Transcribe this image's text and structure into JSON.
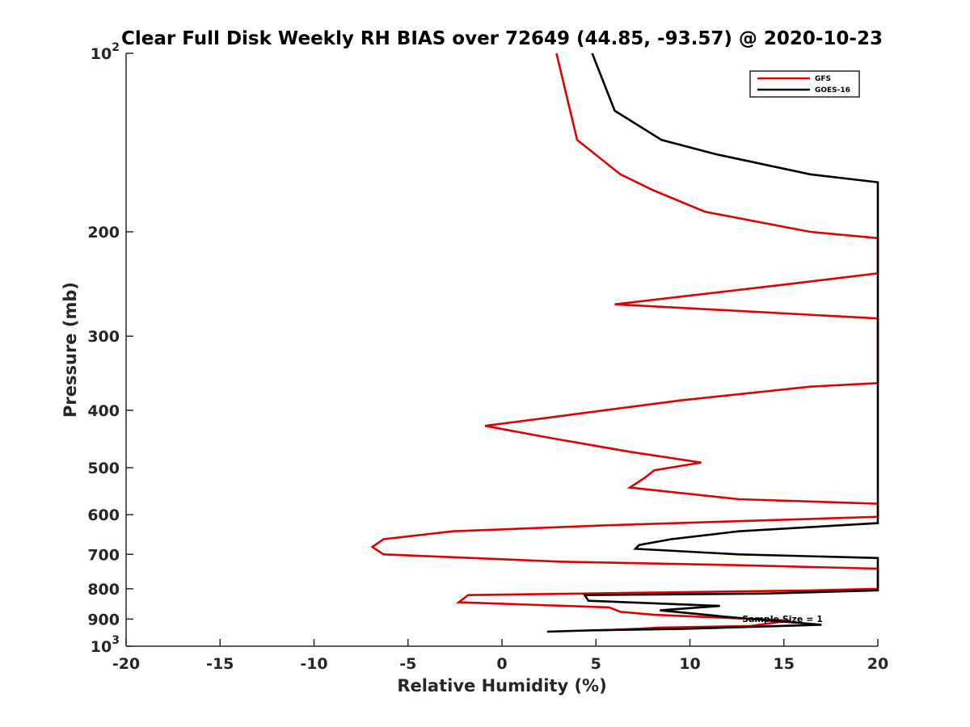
{
  "chart_data": {
    "type": "line",
    "title": "Clear Full Disk Weekly RH BIAS over 72649 (44.85, -93.57) @ 2020-10-23",
    "xlabel": "Relative Humidity (%)",
    "ylabel": "Pressure (mb)",
    "xlim": [
      -20,
      20
    ],
    "ylim": [
      100,
      1000
    ],
    "yscale": "log",
    "y_reversed": true,
    "x_ticks": [
      -20,
      -15,
      -10,
      -5,
      0,
      5,
      10,
      15,
      20
    ],
    "y_ticks": [
      {
        "value": 100,
        "label": "10",
        "sup": "2"
      },
      {
        "value": 200,
        "label": "200"
      },
      {
        "value": 300,
        "label": "300"
      },
      {
        "value": 400,
        "label": "400"
      },
      {
        "value": 500,
        "label": "500"
      },
      {
        "value": 600,
        "label": "600"
      },
      {
        "value": 700,
        "label": "700"
      },
      {
        "value": 800,
        "label": "800"
      },
      {
        "value": 900,
        "label": "900"
      },
      {
        "value": 1000,
        "label": "10",
        "sup": "3"
      }
    ],
    "grid": false,
    "legend_position": "top-right",
    "annotation": "Sample Size = 1",
    "series": [
      {
        "name": "GFS",
        "color": "#e00000",
        "points": [
          [
            2.9,
            100
          ],
          [
            4,
            140
          ],
          [
            6.3,
            160
          ],
          [
            8,
            170
          ],
          [
            10.8,
            185
          ],
          [
            16.4,
            200
          ],
          [
            20,
            205
          ],
          [
            20,
            235
          ],
          [
            15.3,
            245
          ],
          [
            6,
            265
          ],
          [
            20,
            280
          ],
          [
            20,
            360
          ],
          [
            16.4,
            365
          ],
          [
            9.5,
            385
          ],
          [
            -0.9,
            425
          ],
          [
            2.5,
            445
          ],
          [
            6.8,
            470
          ],
          [
            10.6,
            490
          ],
          [
            8.1,
            505
          ],
          [
            7.6,
            520
          ],
          [
            6.8,
            540
          ],
          [
            12.6,
            565
          ],
          [
            20,
            575
          ],
          [
            20,
            605
          ],
          [
            16.4,
            610
          ],
          [
            5.7,
            625
          ],
          [
            -2.6,
            640
          ],
          [
            -6.3,
            660
          ],
          [
            -6.9,
            680
          ],
          [
            -6.3,
            700
          ],
          [
            3.1,
            720
          ],
          [
            12.6,
            730
          ],
          [
            20,
            740
          ],
          [
            20,
            800
          ],
          [
            16.4,
            805
          ],
          [
            4.3,
            815
          ],
          [
            -1.8,
            820
          ],
          [
            -2.3,
            843
          ],
          [
            5.7,
            860
          ],
          [
            6.3,
            875
          ],
          [
            8.1,
            885
          ],
          [
            15.3,
            905
          ],
          [
            13.2,
            925
          ],
          [
            8.4,
            930
          ],
          [
            7.1,
            935
          ],
          [
            5.2,
            940
          ]
        ]
      },
      {
        "name": "GOES-16",
        "color": "#000000",
        "points": [
          [
            4.8,
            100
          ],
          [
            6,
            125
          ],
          [
            8.5,
            140
          ],
          [
            11.4,
            148
          ],
          [
            16.4,
            160
          ],
          [
            20,
            165
          ],
          [
            20,
            620
          ],
          [
            12.6,
            640
          ],
          [
            9,
            660
          ],
          [
            7.3,
            675
          ],
          [
            7.1,
            685
          ],
          [
            12.6,
            700
          ],
          [
            20,
            710
          ],
          [
            20,
            805
          ],
          [
            14,
            815
          ],
          [
            4.4,
            820
          ],
          [
            4.6,
            838
          ],
          [
            11.6,
            855
          ],
          [
            8.4,
            870
          ],
          [
            12.4,
            895
          ],
          [
            17,
            920
          ],
          [
            9.5,
            935
          ],
          [
            4.8,
            940
          ],
          [
            2.4,
            945
          ]
        ]
      }
    ]
  }
}
